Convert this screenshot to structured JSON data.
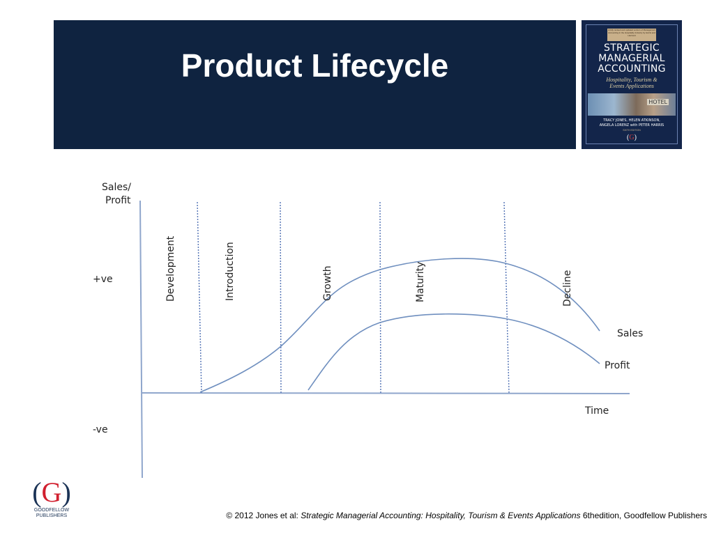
{
  "header": {
    "title": "Product Lifecycle"
  },
  "book_cover": {
    "blurb": "A fully revised and updated version of Management Accounting in the Hospitality Industry by Harris and Hazzard",
    "title": "STRATEGIC\nMANAGERIAL\nACCOUNTING",
    "subtitle": "Hospitality, Tourism &\nEvents Applications",
    "sign": "HOTEL",
    "authors": "TRACY JONES, HELEN ATKINSON,\nANGELA LORENZ with PETER HARRIS",
    "edition": "SIXTH EDITION",
    "logo_paren_left": "(",
    "logo_letter": "G",
    "logo_paren_right": ")"
  },
  "diagram": {
    "y_axis_label_line1": "Sales/",
    "y_axis_label_line2": "Profit",
    "positive_label": "+ve",
    "negative_label": "-ve",
    "x_axis_label": "Time",
    "stages": [
      "Development",
      "Introduction",
      "Growth",
      "Maturity",
      "Decline"
    ],
    "curve_labels": {
      "sales": "Sales",
      "profit": "Profit"
    },
    "colors": {
      "curve": "#6f8fbf",
      "divider": "#5a79b8",
      "axis": "#8fa6cc",
      "text": "#222222"
    }
  },
  "publisher": {
    "paren_left": "(",
    "letter": "G",
    "paren_right": ")",
    "name": "GOODFELLOW\nPUBLISHERS"
  },
  "footer": {
    "prefix": "© 2012 Jones et al: ",
    "book": "Strategic Managerial Accounting: Hospitality, Tourism & Events Applications",
    "suffix": " 6thedition, Goodfellow Publishers"
  }
}
